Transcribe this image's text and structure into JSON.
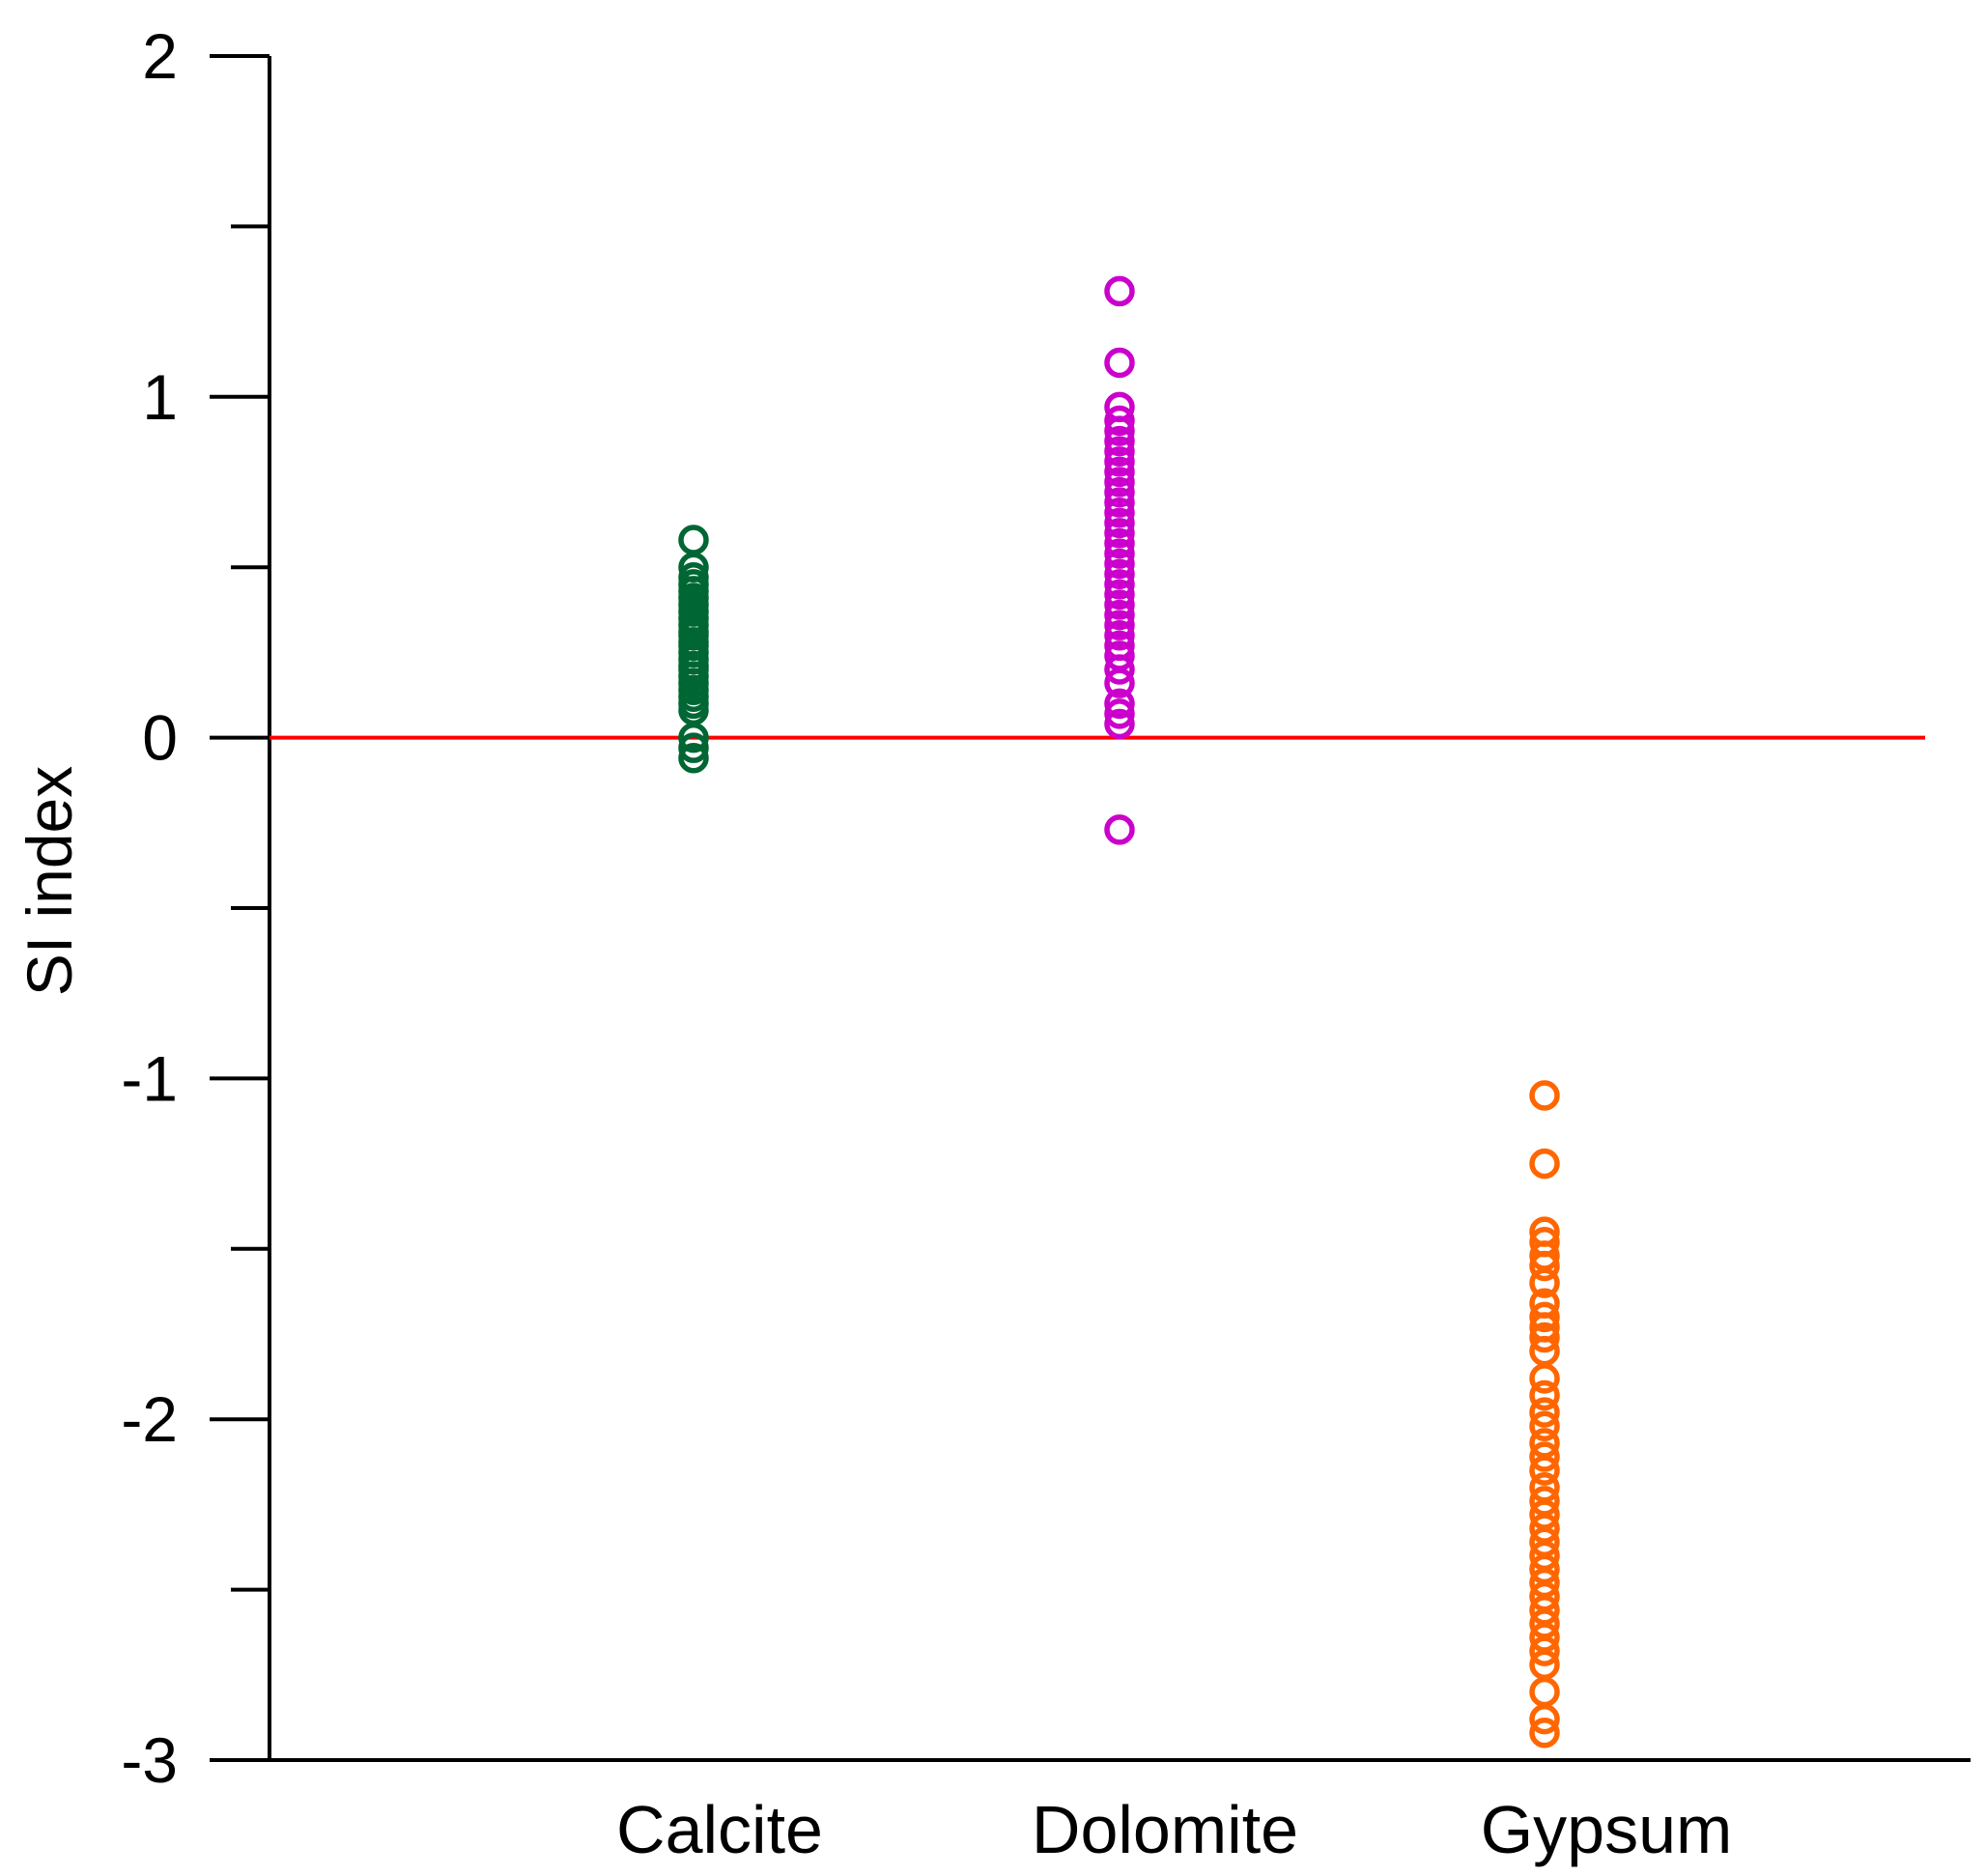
{
  "chart_data": {
    "type": "scatter",
    "title": "",
    "xlabel": "",
    "ylabel": "SI index",
    "ylim": [
      -3,
      2
    ],
    "y_major_ticks": [
      2,
      1,
      0,
      -1,
      -2,
      -3
    ],
    "y_minor_ticks": [
      1.5,
      0.5,
      -0.5,
      -1.5,
      -2.5
    ],
    "y_tick_labels": [
      "2",
      "1",
      "0",
      "-1",
      "-2",
      "-3"
    ],
    "categories": [
      "Calcite",
      "Dolomite",
      "Gypsum"
    ],
    "reference_line": {
      "y": 0,
      "color": "#ff0000"
    },
    "grid": false,
    "series": [
      {
        "name": "Calcite",
        "color": "#006633",
        "values": [
          0.58,
          0.5,
          0.47,
          0.45,
          0.43,
          0.41,
          0.39,
          0.37,
          0.35,
          0.33,
          0.31,
          0.3,
          0.28,
          0.27,
          0.25,
          0.23,
          0.21,
          0.2,
          0.18,
          0.16,
          0.14,
          0.12,
          0.1,
          0.08,
          0.0,
          -0.03,
          -0.06
        ]
      },
      {
        "name": "Dolomite",
        "color": "#cc00cc",
        "values": [
          1.31,
          1.1,
          0.97,
          0.93,
          0.9,
          0.87,
          0.84,
          0.81,
          0.78,
          0.75,
          0.72,
          0.69,
          0.66,
          0.63,
          0.6,
          0.57,
          0.54,
          0.51,
          0.48,
          0.45,
          0.42,
          0.39,
          0.36,
          0.33,
          0.3,
          0.27,
          0.24,
          0.2,
          0.16,
          0.1,
          0.07,
          0.04,
          -0.27
        ]
      },
      {
        "name": "Gypsum",
        "color": "#ff6600",
        "values": [
          -1.05,
          -1.25,
          -1.45,
          -1.48,
          -1.52,
          -1.55,
          -1.6,
          -1.66,
          -1.7,
          -1.73,
          -1.76,
          -1.8,
          -1.88,
          -1.93,
          -1.98,
          -2.02,
          -2.07,
          -2.11,
          -2.15,
          -2.2,
          -2.24,
          -2.28,
          -2.32,
          -2.36,
          -2.4,
          -2.44,
          -2.48,
          -2.52,
          -2.56,
          -2.6,
          -2.64,
          -2.68,
          -2.72,
          -2.8,
          -2.88,
          -2.92
        ]
      }
    ]
  }
}
